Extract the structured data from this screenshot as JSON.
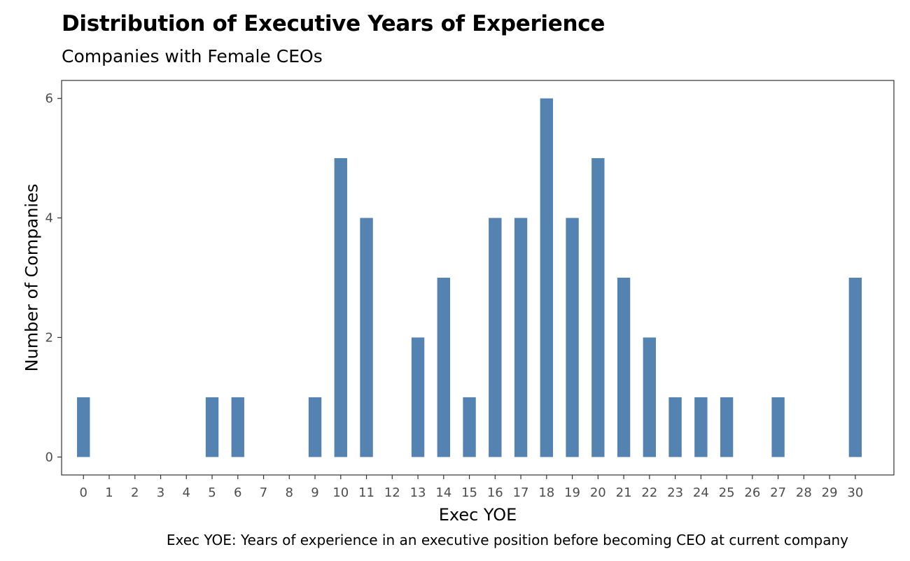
{
  "title": "Distribution of Executive Years of Experience",
  "subtitle": "Companies with Female CEOs",
  "caption": "Exec YOE: Years of experience in an executive position before becoming CEO at current company",
  "colors": {
    "bar": "#5583b1",
    "panel_border": "#333333",
    "tick": "#333333"
  },
  "chart_data": {
    "type": "bar",
    "title": "Distribution of Executive Years of Experience",
    "subtitle": "Companies with Female CEOs",
    "xlabel": "Exec YOE",
    "ylabel": "Number of Companies",
    "categories": [
      "0",
      "1",
      "2",
      "3",
      "4",
      "5",
      "6",
      "7",
      "8",
      "9",
      "10",
      "11",
      "12",
      "13",
      "14",
      "15",
      "16",
      "17",
      "18",
      "19",
      "20",
      "21",
      "22",
      "23",
      "24",
      "25",
      "26",
      "27",
      "28",
      "29",
      "30"
    ],
    "values": [
      1,
      0,
      0,
      0,
      0,
      1,
      1,
      0,
      0,
      1,
      5,
      4,
      0,
      2,
      3,
      1,
      4,
      4,
      6,
      4,
      5,
      3,
      2,
      1,
      1,
      1,
      0,
      1,
      0,
      0,
      3
    ],
    "yticks": [
      0,
      2,
      4,
      6
    ],
    "ylim": [
      -0.3,
      6.3
    ],
    "xlim": [
      -0.85,
      31.5
    ],
    "grid": false,
    "legend": "none"
  }
}
